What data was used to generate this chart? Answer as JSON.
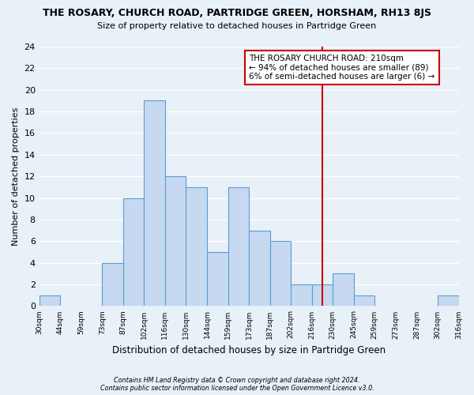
{
  "title": "THE ROSARY, CHURCH ROAD, PARTRIDGE GREEN, HORSHAM, RH13 8JS",
  "subtitle": "Size of property relative to detached houses in Partridge Green",
  "xlabel": "Distribution of detached houses by size in Partridge Green",
  "ylabel": "Number of detached properties",
  "bin_labels": [
    "30sqm",
    "44sqm",
    "59sqm",
    "73sqm",
    "87sqm",
    "102sqm",
    "116sqm",
    "130sqm",
    "144sqm",
    "159sqm",
    "173sqm",
    "187sqm",
    "202sqm",
    "216sqm",
    "230sqm",
    "245sqm",
    "259sqm",
    "273sqm",
    "287sqm",
    "302sqm",
    "316sqm"
  ],
  "bar_heights": [
    1,
    0,
    0,
    4,
    10,
    19,
    12,
    11,
    5,
    11,
    7,
    6,
    2,
    2,
    3,
    1,
    0,
    0,
    0,
    1
  ],
  "bar_color": "#c6d9f0",
  "bar_edge_color": "#5b9bd5",
  "vline_x": 13.5,
  "vline_color": "#cc0000",
  "ylim": [
    0,
    24
  ],
  "yticks": [
    0,
    2,
    4,
    6,
    8,
    10,
    12,
    14,
    16,
    18,
    20,
    22,
    24
  ],
  "annotation_title": "THE ROSARY CHURCH ROAD: 210sqm",
  "annotation_line1": "← 94% of detached houses are smaller (89)",
  "annotation_line2": "6% of semi-detached houses are larger (6) →",
  "annotation_box_color": "#ffffff",
  "annotation_box_edge": "#cc0000",
  "footnote1": "Contains HM Land Registry data © Crown copyright and database right 2024.",
  "footnote2": "Contains public sector information licensed under the Open Government Licence v3.0.",
  "bg_color": "#e8f0f8",
  "plot_bg_color": "#e8f0f8",
  "grid_color": "#ffffff"
}
